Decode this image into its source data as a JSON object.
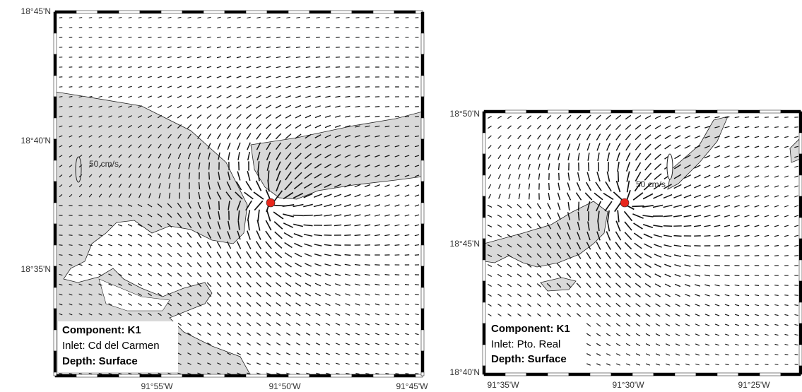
{
  "panels": [
    {
      "lat_labels": [
        "18°45'N",
        "18°40'N",
        "18°35'N"
      ],
      "lon_labels": [
        "91°55'W",
        "91°50'W",
        "91°45'W"
      ],
      "scale_label": "50 cm/s",
      "info": [
        "Component: K1",
        "Inlet: Cd del Carmen",
        "Depth: Surface"
      ]
    },
    {
      "lat_labels": [
        "18°50'N",
        "18°45'N",
        "18°40'N"
      ],
      "lon_labels": [
        "91°35'W",
        "91°30'W",
        "91°25'W"
      ],
      "scale_label": "50 cm/s",
      "info": [
        "Component: K1",
        "Inlet: Pto. Real",
        "Depth: Surface"
      ]
    }
  ]
}
